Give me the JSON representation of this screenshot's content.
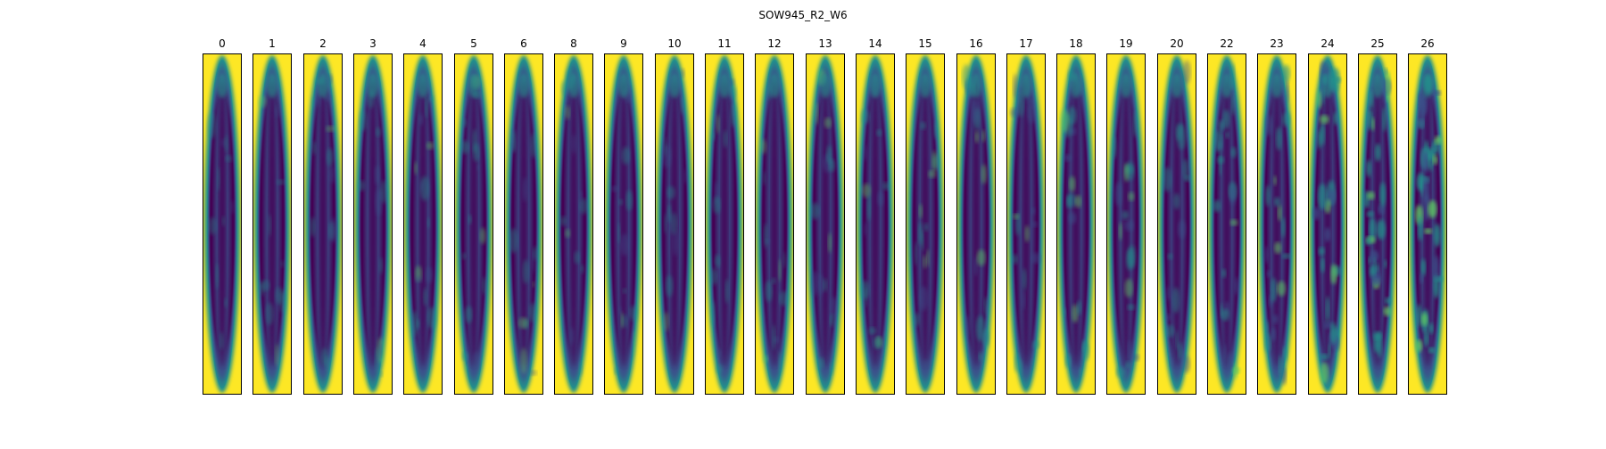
{
  "title": "SOW945_R2_W6",
  "panels": [
    {
      "label": "0",
      "texture": 0.15
    },
    {
      "label": "1",
      "texture": 0.15
    },
    {
      "label": "2",
      "texture": 0.25
    },
    {
      "label": "3",
      "texture": 0.2
    },
    {
      "label": "4",
      "texture": 0.3
    },
    {
      "label": "5",
      "texture": 0.3
    },
    {
      "label": "6",
      "texture": 0.25
    },
    {
      "label": "8",
      "texture": 0.2
    },
    {
      "label": "9",
      "texture": 0.25
    },
    {
      "label": "10",
      "texture": 0.2
    },
    {
      "label": "11",
      "texture": 0.25
    },
    {
      "label": "12",
      "texture": 0.25
    },
    {
      "label": "13",
      "texture": 0.3
    },
    {
      "label": "14",
      "texture": 0.3
    },
    {
      "label": "15",
      "texture": 0.3
    },
    {
      "label": "16",
      "texture": 0.4
    },
    {
      "label": "17",
      "texture": 0.35
    },
    {
      "label": "18",
      "texture": 0.45
    },
    {
      "label": "19",
      "texture": 0.4
    },
    {
      "label": "20",
      "texture": 0.35
    },
    {
      "label": "22",
      "texture": 0.55
    },
    {
      "label": "23",
      "texture": 0.6
    },
    {
      "label": "24",
      "texture": 0.8
    },
    {
      "label": "25",
      "texture": 0.9
    },
    {
      "label": "26",
      "texture": 1.0
    }
  ],
  "colors": {
    "viridis_dark": "#440154",
    "viridis_blue": "#3b528b",
    "viridis_teal": "#21918c",
    "viridis_green": "#5ec962",
    "viridis_yellow": "#fde725"
  }
}
